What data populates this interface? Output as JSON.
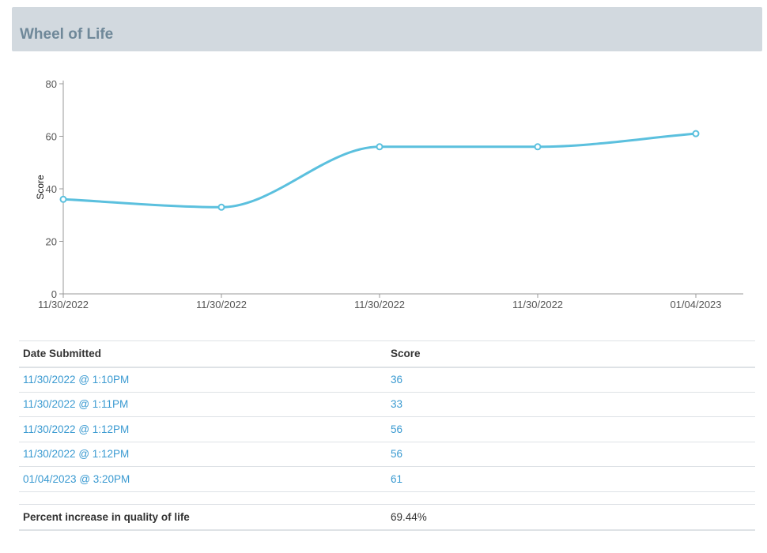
{
  "panel": {
    "title": "Wheel of Life"
  },
  "chart_data": {
    "type": "line",
    "title": "",
    "xlabel": "",
    "ylabel": "Score",
    "categories": [
      "11/30/2022",
      "11/30/2022",
      "11/30/2022",
      "11/30/2022",
      "01/04/2023"
    ],
    "values": [
      36,
      33,
      56,
      56,
      61
    ],
    "ylim": [
      0,
      80
    ],
    "yticks": [
      0,
      20,
      40,
      60,
      80
    ],
    "grid": false,
    "legend": "none",
    "line_color": "#5bc0de",
    "smooth": true
  },
  "table": {
    "headers": {
      "date": "Date Submitted",
      "score": "Score"
    },
    "rows": [
      {
        "date": "11/30/2022 @ 1:10PM",
        "score": "36"
      },
      {
        "date": "11/30/2022 @ 1:11PM",
        "score": "33"
      },
      {
        "date": "11/30/2022 @ 1:12PM",
        "score": "56"
      },
      {
        "date": "11/30/2022 @ 1:12PM",
        "score": "56"
      },
      {
        "date": "01/04/2023 @ 3:20PM",
        "score": "61"
      }
    ]
  },
  "summary": {
    "label": "Percent increase in quality of life",
    "value": "69.44%"
  },
  "colors": {
    "link": "#3a9ad1",
    "header_bg": "#d2d9df",
    "title": "#6f8899"
  }
}
